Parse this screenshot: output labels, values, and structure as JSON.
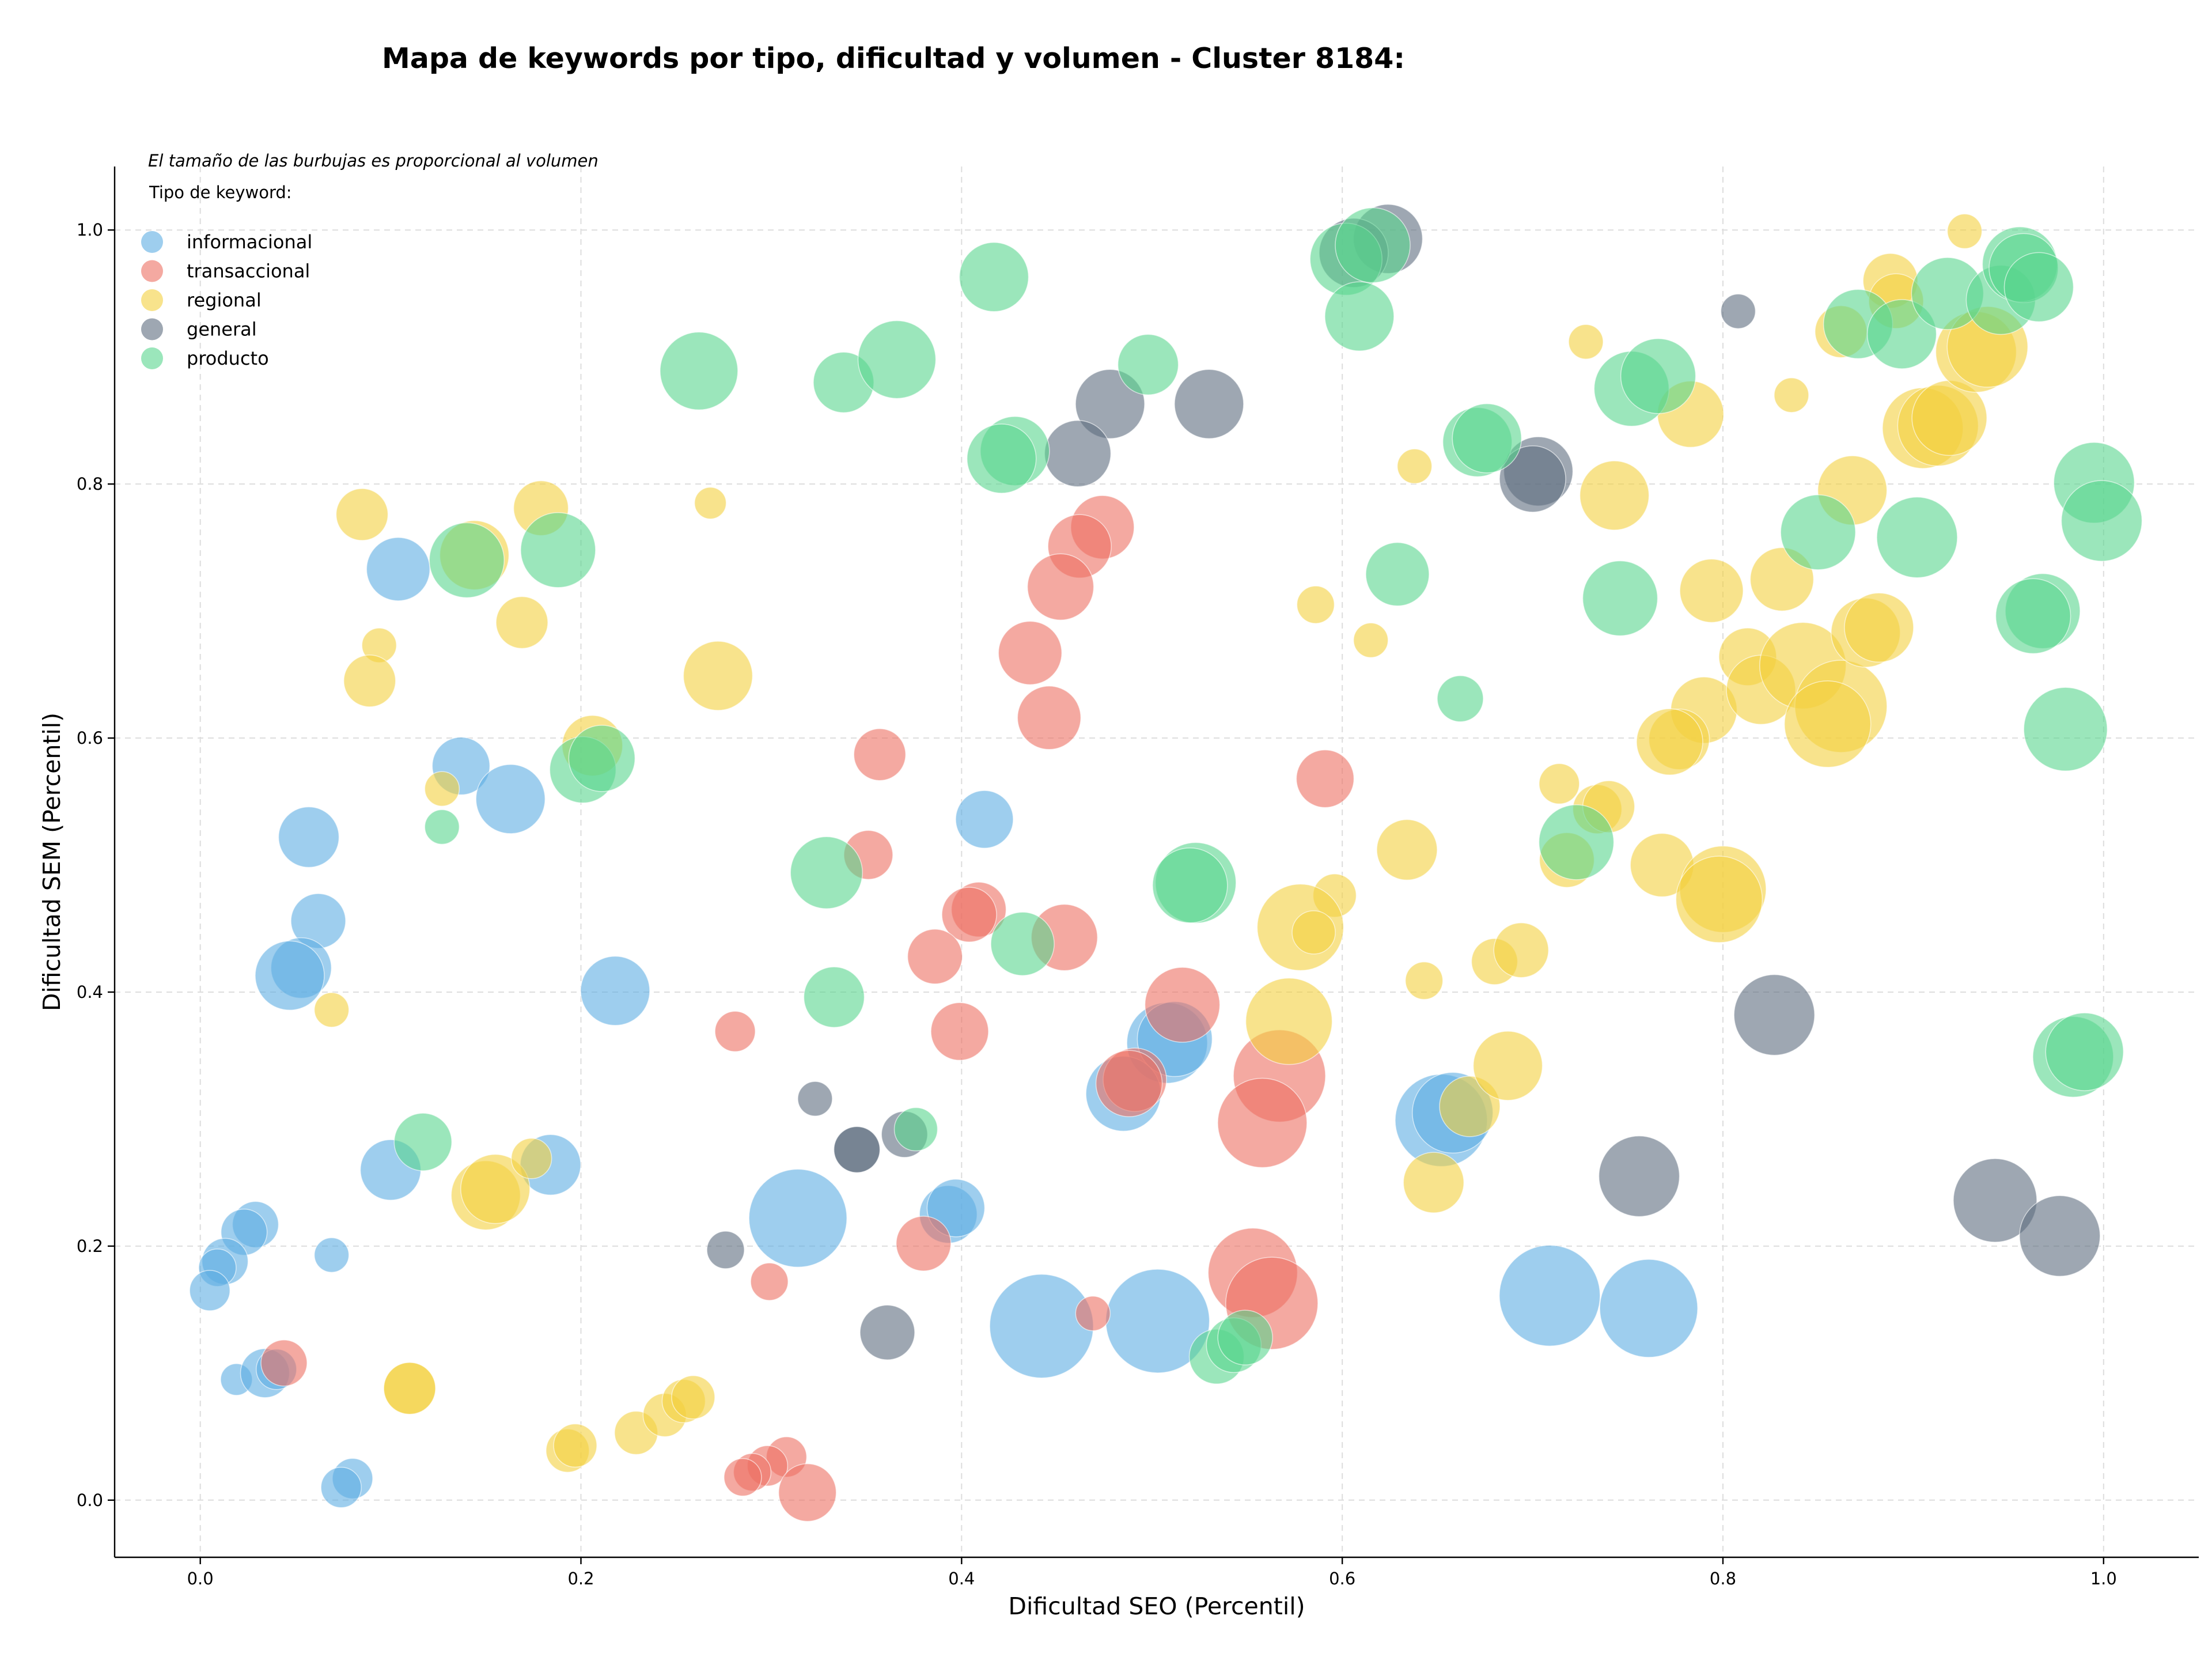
{
  "chart_data": {
    "type": "scatter",
    "title": "Mapa de keywords por tipo, dificultad y volumen - Cluster 8184:",
    "xlabel": "Dificultad SEO (Percentil)",
    "ylabel": "Dificultad SEM (Percentil)",
    "xlim": [
      -0.045,
      1.05
    ],
    "ylim": [
      -0.045,
      1.05
    ],
    "xticks": [
      "0.0",
      "0.2",
      "0.4",
      "0.6",
      "0.8",
      "1.0"
    ],
    "yticks": [
      "0.0",
      "0.2",
      "0.4",
      "0.6",
      "0.8",
      "1.0"
    ],
    "grid": true,
    "legend_placement": "top-left",
    "note": "El tamaño de las burbujas es proporcional al volumen",
    "legend_title": "Tipo de keyword:",
    "series": [
      {
        "name": "informacional",
        "color": "#5DADE2",
        "points": [
          [
            0.104,
            0.733,
            2.2
          ],
          [
            0.137,
            0.578,
            2.0
          ],
          [
            0.163,
            0.552,
            2.4
          ],
          [
            0.057,
            0.522,
            2.1
          ],
          [
            0.062,
            0.456,
            1.9
          ],
          [
            0.053,
            0.419,
            2.1
          ],
          [
            0.047,
            0.413,
            2.4
          ],
          [
            0.218,
            0.401,
            2.4
          ],
          [
            0.412,
            0.536,
            2.0
          ],
          [
            0.508,
            0.36,
            2.8
          ],
          [
            0.512,
            0.363,
            2.6
          ],
          [
            0.485,
            0.32,
            2.6
          ],
          [
            0.652,
            0.299,
            3.2
          ],
          [
            0.658,
            0.305,
            2.8
          ],
          [
            0.314,
            0.222,
            3.4
          ],
          [
            0.393,
            0.225,
            2.0
          ],
          [
            0.397,
            0.23,
            2.0
          ],
          [
            0.1,
            0.26,
            2.1
          ],
          [
            0.184,
            0.264,
            2.1
          ],
          [
            0.029,
            0.217,
            1.6
          ],
          [
            0.023,
            0.211,
            1.6
          ],
          [
            0.069,
            0.193,
            1.2
          ],
          [
            0.013,
            0.188,
            1.6
          ],
          [
            0.009,
            0.183,
            1.3
          ],
          [
            0.005,
            0.165,
            1.4
          ],
          [
            0.019,
            0.095,
            1.1
          ],
          [
            0.034,
            0.1,
            1.7
          ],
          [
            0.04,
            0.103,
            1.4
          ],
          [
            0.08,
            0.017,
            1.4
          ],
          [
            0.074,
            0.01,
            1.4
          ],
          [
            0.442,
            0.137,
            3.6
          ],
          [
            0.503,
            0.141,
            3.6
          ],
          [
            0.709,
            0.161,
            3.5
          ],
          [
            0.761,
            0.151,
            3.4
          ]
        ]
      },
      {
        "name": "transaccional",
        "color": "#EC7063",
        "points": [
          [
            0.474,
            0.766,
            2.2
          ],
          [
            0.462,
            0.751,
            2.2
          ],
          [
            0.452,
            0.719,
            2.3
          ],
          [
            0.436,
            0.667,
            2.2
          ],
          [
            0.446,
            0.616,
            2.2
          ],
          [
            0.357,
            0.587,
            1.8
          ],
          [
            0.351,
            0.508,
            1.7
          ],
          [
            0.409,
            0.465,
            1.9
          ],
          [
            0.404,
            0.461,
            1.9
          ],
          [
            0.454,
            0.443,
            2.3
          ],
          [
            0.386,
            0.428,
            1.9
          ],
          [
            0.399,
            0.369,
            2.0
          ],
          [
            0.281,
            0.369,
            1.4
          ],
          [
            0.516,
            0.39,
            2.6
          ],
          [
            0.491,
            0.331,
            2.2
          ],
          [
            0.488,
            0.328,
            2.3
          ],
          [
            0.567,
            0.334,
            3.2
          ],
          [
            0.558,
            0.297,
            3.1
          ],
          [
            0.38,
            0.202,
            1.9
          ],
          [
            0.299,
            0.172,
            1.3
          ],
          [
            0.553,
            0.179,
            3.1
          ],
          [
            0.563,
            0.155,
            3.2
          ],
          [
            0.469,
            0.147,
            1.2
          ],
          [
            0.591,
            0.568,
            2.0
          ],
          [
            0.044,
            0.108,
            1.6
          ],
          [
            0.308,
            0.034,
            1.4
          ],
          [
            0.298,
            0.027,
            1.4
          ],
          [
            0.29,
            0.022,
            1.3
          ],
          [
            0.285,
            0.018,
            1.3
          ],
          [
            0.319,
            0.006,
            2.0
          ]
        ]
      },
      {
        "name": "regional",
        "color": "#F4D03F",
        "points": [
          [
            0.085,
            0.776,
            1.8
          ],
          [
            0.179,
            0.781,
            1.9
          ],
          [
            0.144,
            0.744,
            2.4
          ],
          [
            0.094,
            0.673,
            1.2
          ],
          [
            0.169,
            0.691,
            1.8
          ],
          [
            0.089,
            0.645,
            1.8
          ],
          [
            0.268,
            0.785,
            1.1
          ],
          [
            0.272,
            0.649,
            2.4
          ],
          [
            0.206,
            0.594,
            2.1
          ],
          [
            0.127,
            0.56,
            1.2
          ],
          [
            0.069,
            0.386,
            1.2
          ],
          [
            0.15,
            0.24,
            2.4
          ],
          [
            0.155,
            0.245,
            2.4
          ],
          [
            0.174,
            0.269,
            1.4
          ],
          [
            0.11,
            0.088,
            1.8
          ],
          [
            0.193,
            0.039,
            1.5
          ],
          [
            0.197,
            0.043,
            1.5
          ],
          [
            0.229,
            0.053,
            1.5
          ],
          [
            0.244,
            0.067,
            1.5
          ],
          [
            0.254,
            0.078,
            1.5
          ],
          [
            0.259,
            0.081,
            1.5
          ],
          [
            0.586,
            0.705,
            1.3
          ],
          [
            0.615,
            0.677,
            1.2
          ],
          [
            0.638,
            0.814,
            1.2
          ],
          [
            0.634,
            0.512,
            2.1
          ],
          [
            0.596,
            0.476,
            1.5
          ],
          [
            0.578,
            0.451,
            3.0
          ],
          [
            0.585,
            0.447,
            1.5
          ],
          [
            0.572,
            0.377,
            3.0
          ],
          [
            0.643,
            0.409,
            1.3
          ],
          [
            0.648,
            0.25,
            2.1
          ],
          [
            0.667,
            0.31,
            2.1
          ],
          [
            0.68,
            0.424,
            1.6
          ],
          [
            0.694,
            0.433,
            1.9
          ],
          [
            0.687,
            0.342,
            2.4
          ],
          [
            0.714,
            0.564,
            1.4
          ],
          [
            0.734,
            0.544,
            1.7
          ],
          [
            0.74,
            0.546,
            1.8
          ],
          [
            0.718,
            0.504,
            1.9
          ],
          [
            0.728,
            0.912,
            1.2
          ],
          [
            0.743,
            0.791,
            2.4
          ],
          [
            0.783,
            0.855,
            2.3
          ],
          [
            0.794,
            0.716,
            2.2
          ],
          [
            0.79,
            0.622,
            2.3
          ],
          [
            0.777,
            0.599,
            2.1
          ],
          [
            0.772,
            0.597,
            2.3
          ],
          [
            0.768,
            0.5,
            2.2
          ],
          [
            0.8,
            0.481,
            3.0
          ],
          [
            0.798,
            0.473,
            3.0
          ],
          [
            0.813,
            0.664,
            2.0
          ],
          [
            0.82,
            0.638,
            2.4
          ],
          [
            0.831,
            0.725,
            2.2
          ],
          [
            0.842,
            0.657,
            3.0
          ],
          [
            0.862,
            0.625,
            3.2
          ],
          [
            0.855,
            0.611,
            3.0
          ],
          [
            0.836,
            0.87,
            1.2
          ],
          [
            0.862,
            0.92,
            1.8
          ],
          [
            0.888,
            0.96,
            1.9
          ],
          [
            0.891,
            0.944,
            1.9
          ],
          [
            0.927,
            0.999,
            1.2
          ],
          [
            0.868,
            0.795,
            2.4
          ],
          [
            0.875,
            0.683,
            2.4
          ],
          [
            0.882,
            0.687,
            2.4
          ],
          [
            0.905,
            0.844,
            2.8
          ],
          [
            0.913,
            0.846,
            2.8
          ],
          [
            0.919,
            0.852,
            2.6
          ],
          [
            0.933,
            0.904,
            2.8
          ],
          [
            0.939,
            0.908,
            2.8
          ],
          [
            0.11,
            0.088,
            1.8
          ]
        ]
      },
      {
        "name": "general",
        "color": "#5D6D7E",
        "points": [
          [
            0.478,
            0.863,
            2.4
          ],
          [
            0.461,
            0.824,
            2.3
          ],
          [
            0.53,
            0.863,
            2.4
          ],
          [
            0.624,
            0.993,
            2.4
          ],
          [
            0.606,
            0.982,
            2.4
          ],
          [
            0.703,
            0.81,
            2.4
          ],
          [
            0.7,
            0.804,
            2.3
          ],
          [
            0.808,
            0.936,
            1.2
          ],
          [
            0.827,
            0.382,
            2.8
          ],
          [
            0.756,
            0.255,
            2.8
          ],
          [
            0.943,
            0.236,
            2.9
          ],
          [
            0.977,
            0.208,
            2.8
          ],
          [
            0.323,
            0.316,
            1.2
          ],
          [
            0.345,
            0.276,
            1.6
          ],
          [
            0.345,
            0.276,
            1.6
          ],
          [
            0.37,
            0.288,
            1.6
          ],
          [
            0.276,
            0.197,
            1.3
          ],
          [
            0.361,
            0.132,
            1.9
          ]
        ]
      },
      {
        "name": "producto",
        "color": "#58D68D",
        "points": [
          [
            0.417,
            0.963,
            2.4
          ],
          [
            0.262,
            0.889,
            2.7
          ],
          [
            0.338,
            0.88,
            2.1
          ],
          [
            0.366,
            0.898,
            2.7
          ],
          [
            0.498,
            0.894,
            2.1
          ],
          [
            0.428,
            0.826,
            2.4
          ],
          [
            0.421,
            0.82,
            2.4
          ],
          [
            0.14,
            0.74,
            2.6
          ],
          [
            0.188,
            0.748,
            2.6
          ],
          [
            0.201,
            0.575,
            2.3
          ],
          [
            0.211,
            0.584,
            2.3
          ],
          [
            0.127,
            0.53,
            1.2
          ],
          [
            0.329,
            0.494,
            2.5
          ],
          [
            0.333,
            0.396,
            2.1
          ],
          [
            0.432,
            0.438,
            2.2
          ],
          [
            0.523,
            0.486,
            2.8
          ],
          [
            0.52,
            0.484,
            2.6
          ],
          [
            0.117,
            0.282,
            2.0
          ],
          [
            0.376,
            0.292,
            1.5
          ],
          [
            0.534,
            0.113,
            1.9
          ],
          [
            0.543,
            0.122,
            1.9
          ],
          [
            0.549,
            0.128,
            1.9
          ],
          [
            0.602,
            0.977,
            2.5
          ],
          [
            0.609,
            0.932,
            2.4
          ],
          [
            0.616,
            0.988,
            2.6
          ],
          [
            0.629,
            0.729,
            2.2
          ],
          [
            0.662,
            0.631,
            1.6
          ],
          [
            0.671,
            0.833,
            2.4
          ],
          [
            0.676,
            0.836,
            2.4
          ],
          [
            0.746,
            0.71,
            2.6
          ],
          [
            0.752,
            0.875,
            2.6
          ],
          [
            0.766,
            0.885,
            2.6
          ],
          [
            0.723,
            0.518,
            2.6
          ],
          [
            0.85,
            0.762,
            2.6
          ],
          [
            0.871,
            0.926,
            2.4
          ],
          [
            0.894,
            0.918,
            2.4
          ],
          [
            0.902,
            0.758,
            2.8
          ],
          [
            0.918,
            0.95,
            2.5
          ],
          [
            0.946,
            0.945,
            2.4
          ],
          [
            0.956,
            0.973,
            2.6
          ],
          [
            0.958,
            0.97,
            2.4
          ],
          [
            0.966,
            0.955,
            2.4
          ],
          [
            0.968,
            0.7,
            2.6
          ],
          [
            0.963,
            0.696,
            2.6
          ],
          [
            0.98,
            0.607,
            2.9
          ],
          [
            0.995,
            0.801,
            2.8
          ],
          [
            0.999,
            0.771,
            2.8
          ],
          [
            0.984,
            0.349,
            2.8
          ],
          [
            0.99,
            0.353,
            2.7
          ]
        ]
      }
    ]
  }
}
